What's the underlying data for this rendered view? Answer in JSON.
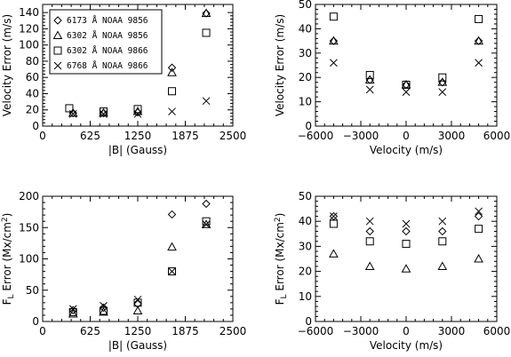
{
  "legend": {
    "entries": [
      {
        "symbol": "diamond",
        "label": "6173 Å NOAA 9856"
      },
      {
        "symbol": "triangle",
        "label": "6302 Å NOAA 9856"
      },
      {
        "symbol": "square",
        "label": "6302 Å NOAA 9866"
      },
      {
        "symbol": "cross",
        "label": "6768 Å NOAA 9866"
      }
    ]
  },
  "chart_data": [
    {
      "type": "scatter",
      "xlabel": "|B| (Gauss)",
      "ylabel": "Velocity Error (m/s)",
      "xlim": [
        0,
        2500
      ],
      "ylim": [
        0,
        150
      ],
      "xticks": [
        0,
        625,
        1250,
        1875,
        2500
      ],
      "yticks": [
        0,
        20,
        40,
        60,
        80,
        100,
        120,
        140
      ],
      "legend": "top-left",
      "series": [
        {
          "name": "6173 Å NOAA 9856",
          "symbol": "diamond",
          "x": [
            400,
            800,
            1250,
            1700,
            2150
          ],
          "y": [
            16,
            16,
            17,
            72,
            139
          ]
        },
        {
          "name": "6302 Å NOAA 9856",
          "symbol": "triangle",
          "x": [
            400,
            800,
            1250,
            1700,
            2150
          ],
          "y": [
            16,
            16,
            18,
            66,
            139
          ]
        },
        {
          "name": "6302 Å NOAA 9866",
          "symbol": "square",
          "x": [
            350,
            800,
            1250,
            1700,
            2150
          ],
          "y": [
            22,
            18,
            21,
            43,
            115
          ]
        },
        {
          "name": "6768 Å NOAA 9866",
          "symbol": "cross",
          "x": [
            400,
            800,
            1250,
            1700,
            2150
          ],
          "y": [
            15,
            15,
            15,
            18,
            31
          ]
        }
      ]
    },
    {
      "type": "scatter",
      "xlabel": "Velocity (m/s)",
      "ylabel": "Velocity Error (m/s)",
      "xlim": [
        -6000,
        6000
      ],
      "ylim": [
        0,
        50
      ],
      "xticks": [
        -6000,
        -3000,
        0,
        3000,
        6000
      ],
      "yticks": [
        0,
        10,
        20,
        30,
        40,
        50
      ],
      "series": [
        {
          "name": "6173 Å NOAA 9856",
          "symbol": "diamond",
          "x": [
            -4800,
            -2400,
            0,
            2400,
            4800
          ],
          "y": [
            35,
            19,
            17,
            18,
            35
          ]
        },
        {
          "name": "6302 Å NOAA 9856",
          "symbol": "triangle",
          "x": [
            -4800,
            -2400,
            0,
            2400,
            4800
          ],
          "y": [
            35,
            19,
            17,
            18,
            35
          ]
        },
        {
          "name": "6302 Å NOAA 9866",
          "symbol": "square",
          "x": [
            -4800,
            -2400,
            0,
            2400,
            4800
          ],
          "y": [
            45,
            21,
            17,
            20,
            44
          ]
        },
        {
          "name": "6768 Å NOAA 9866",
          "symbol": "cross",
          "x": [
            -4800,
            -2400,
            0,
            2400,
            4800
          ],
          "y": [
            26,
            15,
            14,
            14,
            26
          ]
        }
      ]
    },
    {
      "type": "scatter",
      "xlabel": "|B| (Gauss)",
      "ylabel": "F_L Error (Mx/cm²)",
      "ylabel_parts": {
        "main": "F",
        "sub": "L",
        "rest": " Error (Mx/cm",
        "sup": "2",
        "end": ")"
      },
      "xlim": [
        0,
        2500
      ],
      "ylim": [
        0,
        200
      ],
      "xticks": [
        0,
        625,
        1250,
        1875,
        2500
      ],
      "yticks": [
        0,
        50,
        100,
        150,
        200
      ],
      "series": [
        {
          "name": "6173 Å NOAA 9856",
          "symbol": "diamond",
          "x": [
            400,
            800,
            1250,
            1700,
            2150
          ],
          "y": [
            18,
            22,
            28,
            171,
            188
          ]
        },
        {
          "name": "6302 Å NOAA 9856",
          "symbol": "triangle",
          "x": [
            400,
            800,
            1250,
            1700,
            2150
          ],
          "y": [
            12,
            15,
            17,
            119,
            155
          ]
        },
        {
          "name": "6302 Å NOAA 9866",
          "symbol": "square",
          "x": [
            400,
            800,
            1250,
            1700,
            2150
          ],
          "y": [
            15,
            17,
            30,
            80,
            160
          ]
        },
        {
          "name": "6768 Å NOAA 9866",
          "symbol": "cross",
          "x": [
            400,
            800,
            1250,
            1700,
            2150
          ],
          "y": [
            20,
            25,
            35,
            80,
            155
          ]
        }
      ]
    },
    {
      "type": "scatter",
      "xlabel": "Velocity (m/s)",
      "ylabel": "F_L Error (Mx/cm²)",
      "ylabel_parts": {
        "main": "F",
        "sub": "L",
        "rest": " Error (Mx/cm",
        "sup": "2",
        "end": ")"
      },
      "xlim": [
        -6000,
        6000
      ],
      "ylim": [
        0,
        50
      ],
      "xticks": [
        -6000,
        -3000,
        0,
        3000,
        6000
      ],
      "yticks": [
        0,
        10,
        20,
        30,
        40,
        50
      ],
      "series": [
        {
          "name": "6173 Å NOAA 9856",
          "symbol": "diamond",
          "x": [
            -4800,
            -2400,
            0,
            2400,
            4800
          ],
          "y": [
            42,
            36,
            36,
            36,
            42
          ]
        },
        {
          "name": "6302 Å NOAA 9856",
          "symbol": "triangle",
          "x": [
            -4800,
            -2400,
            0,
            2400,
            4800
          ],
          "y": [
            27,
            22,
            21,
            22,
            25
          ]
        },
        {
          "name": "6302 Å NOAA 9866",
          "symbol": "square",
          "x": [
            -4800,
            -2400,
            0,
            2400,
            4800
          ],
          "y": [
            39,
            32,
            31,
            32,
            37
          ]
        },
        {
          "name": "6768 Å NOAA 9866",
          "symbol": "cross",
          "x": [
            -4800,
            -2400,
            0,
            2400,
            4800
          ],
          "y": [
            42,
            40,
            39,
            40,
            44
          ]
        }
      ]
    }
  ]
}
